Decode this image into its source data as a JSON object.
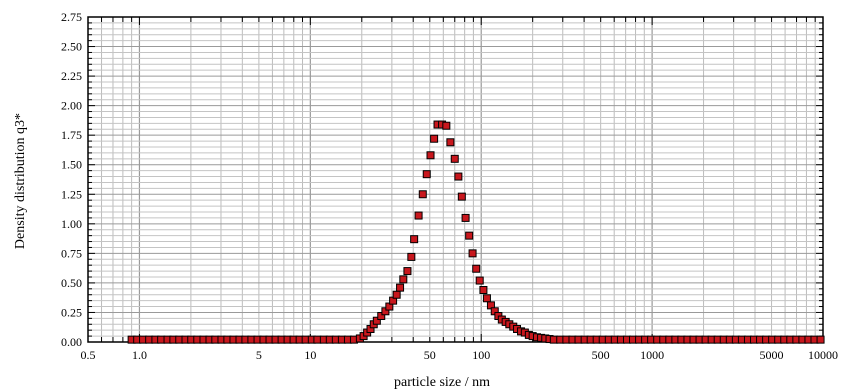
{
  "chart_data": {
    "type": "scatter",
    "xlabel": "particle size / nm",
    "ylabel": "Density distribution q3*",
    "x_scale": "log",
    "xlim": [
      0.5,
      10000
    ],
    "ylim": [
      0,
      2.75
    ],
    "grid": true,
    "x_ticks": [
      {
        "value": 0.5,
        "label": "0.5"
      },
      {
        "value": 1,
        "label": "1.0"
      },
      {
        "value": 5,
        "label": "5"
      },
      {
        "value": 10,
        "label": "10"
      },
      {
        "value": 50,
        "label": "50"
      },
      {
        "value": 100,
        "label": "100"
      },
      {
        "value": 500,
        "label": "500"
      },
      {
        "value": 1000,
        "label": "1000"
      },
      {
        "value": 5000,
        "label": "5000"
      },
      {
        "value": 10000,
        "label": "10000"
      }
    ],
    "y_ticks": [
      "0.00",
      "0.25",
      "0.50",
      "0.75",
      "1.00",
      "1.25",
      "1.50",
      "1.75",
      "2.00",
      "2.25",
      "2.50",
      "2.75"
    ],
    "marker_color": "#c8171d",
    "series": [
      {
        "points": [
          [
            0.9,
            0.02
          ],
          [
            0.97,
            0.02
          ],
          [
            1.05,
            0.02
          ],
          [
            1.14,
            0.02
          ],
          [
            1.24,
            0.02
          ],
          [
            1.34,
            0.02
          ],
          [
            1.46,
            0.02
          ],
          [
            1.58,
            0.02
          ],
          [
            1.71,
            0.02
          ],
          [
            1.86,
            0.02
          ],
          [
            2.01,
            0.02
          ],
          [
            2.18,
            0.02
          ],
          [
            2.37,
            0.02
          ],
          [
            2.57,
            0.02
          ],
          [
            2.78,
            0.02
          ],
          [
            3.02,
            0.02
          ],
          [
            3.27,
            0.02
          ],
          [
            3.55,
            0.02
          ],
          [
            3.85,
            0.02
          ],
          [
            4.17,
            0.02
          ],
          [
            4.52,
            0.02
          ],
          [
            4.91,
            0.02
          ],
          [
            5.32,
            0.02
          ],
          [
            5.77,
            0.02
          ],
          [
            6.26,
            0.02
          ],
          [
            6.79,
            0.02
          ],
          [
            7.36,
            0.02
          ],
          [
            7.98,
            0.02
          ],
          [
            8.66,
            0.02
          ],
          [
            9.39,
            0.02
          ],
          [
            10.2,
            0.02
          ],
          [
            11.0,
            0.02
          ],
          [
            12.0,
            0.02
          ],
          [
            13.0,
            0.02
          ],
          [
            14.1,
            0.02
          ],
          [
            15.3,
            0.02
          ],
          [
            16.6,
            0.02
          ],
          [
            18.0,
            0.02
          ],
          [
            19.5,
            0.03
          ],
          [
            20.5,
            0.05
          ],
          [
            21.5,
            0.08
          ],
          [
            22.5,
            0.11
          ],
          [
            23.5,
            0.15
          ],
          [
            24.5,
            0.18
          ],
          [
            26.0,
            0.22
          ],
          [
            27.5,
            0.26
          ],
          [
            29.0,
            0.3
          ],
          [
            30.5,
            0.35
          ],
          [
            32.0,
            0.4
          ],
          [
            33.5,
            0.46
          ],
          [
            35.0,
            0.53
          ],
          [
            37.0,
            0.6
          ],
          [
            39.0,
            0.72
          ],
          [
            40.5,
            0.87
          ],
          [
            43.0,
            1.07
          ],
          [
            45.5,
            1.25
          ],
          [
            48.0,
            1.42
          ],
          [
            50.5,
            1.58
          ],
          [
            53.0,
            1.72
          ],
          [
            55.5,
            1.84
          ],
          [
            59.0,
            1.84
          ],
          [
            62.5,
            1.83
          ],
          [
            66.0,
            1.69
          ],
          [
            70.0,
            1.55
          ],
          [
            73.5,
            1.4
          ],
          [
            77.0,
            1.23
          ],
          [
            81.0,
            1.05
          ],
          [
            85.0,
            0.9
          ],
          [
            89.0,
            0.75
          ],
          [
            93.5,
            0.62
          ],
          [
            98.0,
            0.52
          ],
          [
            103,
            0.44
          ],
          [
            108,
            0.37
          ],
          [
            114,
            0.31
          ],
          [
            120,
            0.26
          ],
          [
            126,
            0.22
          ],
          [
            132,
            0.19
          ],
          [
            139,
            0.17
          ],
          [
            146,
            0.15
          ],
          [
            154,
            0.13
          ],
          [
            162,
            0.11
          ],
          [
            171,
            0.09
          ],
          [
            180,
            0.08
          ],
          [
            190,
            0.06
          ],
          [
            200,
            0.05
          ],
          [
            212,
            0.04
          ],
          [
            224,
            0.035
          ],
          [
            237,
            0.03
          ],
          [
            251,
            0.025
          ],
          [
            266,
            0.02
          ],
          [
            290,
            0.02
          ],
          [
            315,
            0.02
          ],
          [
            342,
            0.02
          ],
          [
            371,
            0.02
          ],
          [
            403,
            0.02
          ],
          [
            437,
            0.02
          ],
          [
            474,
            0.02
          ],
          [
            514,
            0.02
          ],
          [
            558,
            0.02
          ],
          [
            605,
            0.02
          ],
          [
            657,
            0.02
          ],
          [
            713,
            0.02
          ],
          [
            773,
            0.02
          ],
          [
            839,
            0.02
          ],
          [
            910,
            0.02
          ],
          [
            987,
            0.02
          ],
          [
            1071,
            0.02
          ],
          [
            1162,
            0.02
          ],
          [
            1261,
            0.02
          ],
          [
            1368,
            0.02
          ],
          [
            1484,
            0.02
          ],
          [
            1610,
            0.02
          ],
          [
            1747,
            0.02
          ],
          [
            1895,
            0.02
          ],
          [
            2056,
            0.02
          ],
          [
            2231,
            0.02
          ],
          [
            2420,
            0.02
          ],
          [
            2626,
            0.02
          ],
          [
            2849,
            0.02
          ],
          [
            3091,
            0.02
          ],
          [
            3353,
            0.02
          ],
          [
            3638,
            0.02
          ],
          [
            3947,
            0.02
          ],
          [
            4282,
            0.02
          ],
          [
            4646,
            0.02
          ],
          [
            5040,
            0.02
          ],
          [
            5469,
            0.02
          ],
          [
            5933,
            0.02
          ],
          [
            6437,
            0.02
          ],
          [
            6984,
            0.02
          ],
          [
            7577,
            0.02
          ],
          [
            8220,
            0.02
          ],
          [
            8918,
            0.02
          ],
          [
            9676,
            0.02
          ]
        ]
      }
    ]
  }
}
